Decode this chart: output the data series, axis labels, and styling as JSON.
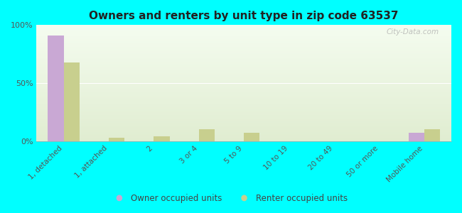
{
  "title": "Owners and renters by unit type in zip code 63537",
  "categories": [
    "1, detached",
    "1, attached",
    "2",
    "3 or 4",
    "5 to 9",
    "10 to 19",
    "20 to 49",
    "50 or more",
    "Mobile home"
  ],
  "owner_values": [
    91,
    0,
    0,
    0,
    0,
    0,
    0,
    0,
    7
  ],
  "renter_values": [
    68,
    3,
    4,
    10,
    7,
    0,
    0,
    0,
    10
  ],
  "owner_color": "#c9a8d4",
  "renter_color": "#c8cf8e",
  "background_color": "#00ffff",
  "ylim": [
    0,
    100
  ],
  "yticks": [
    0,
    50,
    100
  ],
  "ytick_labels": [
    "0%",
    "50%",
    "100%"
  ],
  "bar_width": 0.35,
  "legend_owner": "Owner occupied units",
  "legend_renter": "Renter occupied units",
  "watermark": "City-Data.com"
}
